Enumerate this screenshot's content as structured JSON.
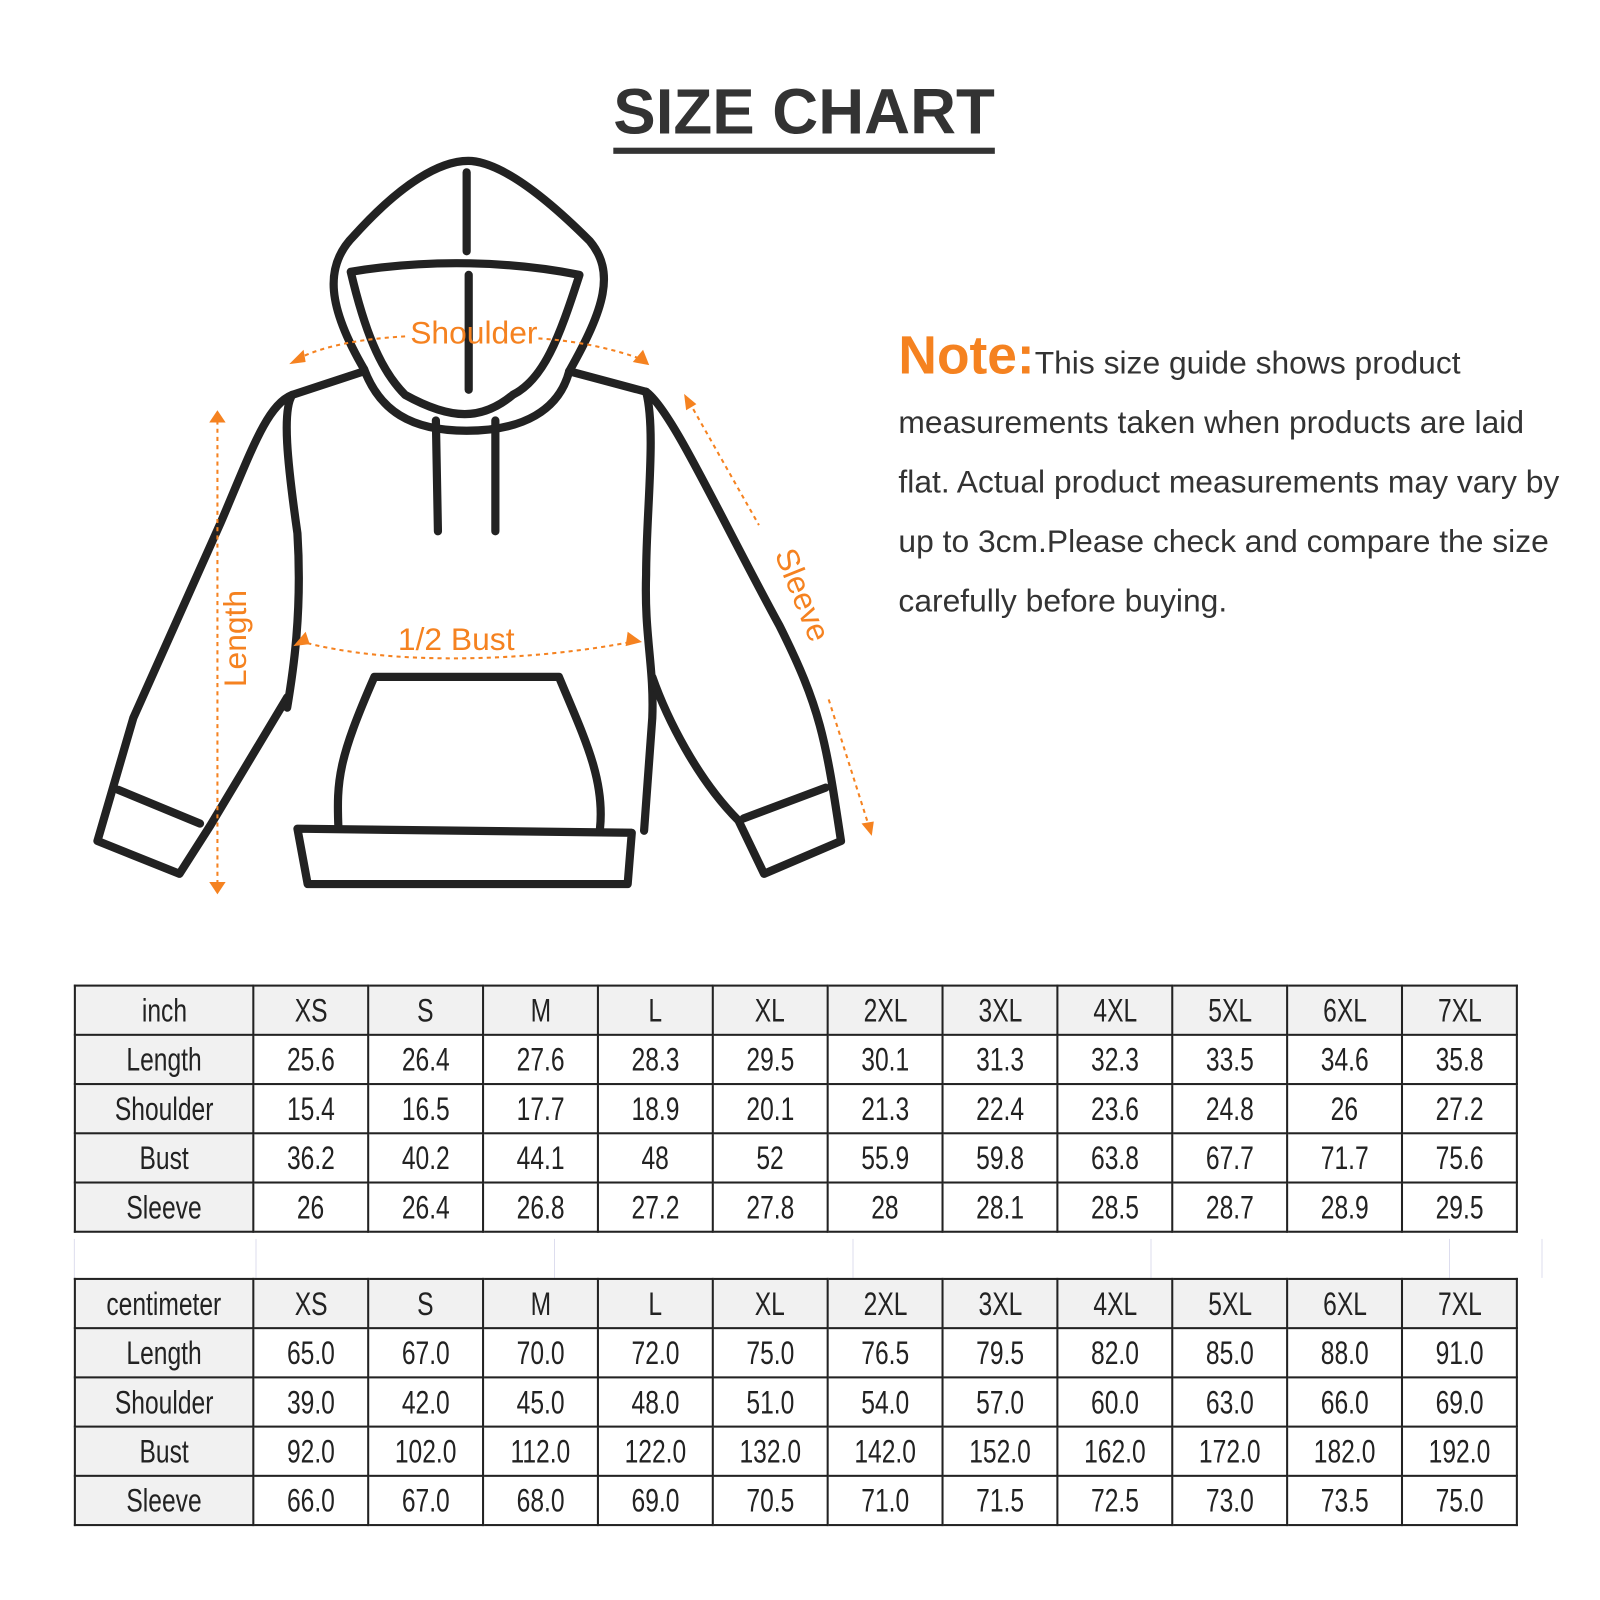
{
  "title": "SIZE CHART",
  "diagram": {
    "shoulder": "Shoulder",
    "bust": "1/2 Bust",
    "length": "Length",
    "sleeve": "Sleeve",
    "accent": "#f58220"
  },
  "note": {
    "label": "Note:",
    "text": "This size guide shows product measurements taken when products are laid flat. Actual product measurements may vary by up to 3cm.Please check and compare the size carefully before buying."
  },
  "sizes": [
    "XS",
    "S",
    "M",
    "L",
    "XL",
    "2XL",
    "3XL",
    "4XL",
    "5XL",
    "6XL",
    "7XL"
  ],
  "inch": {
    "unit": "inch",
    "rows": [
      {
        "label": "Length",
        "values": [
          "25.6",
          "26.4",
          "27.6",
          "28.3",
          "29.5",
          "30.1",
          "31.3",
          "32.3",
          "33.5",
          "34.6",
          "35.8"
        ]
      },
      {
        "label": "Shoulder",
        "values": [
          "15.4",
          "16.5",
          "17.7",
          "18.9",
          "20.1",
          "21.3",
          "22.4",
          "23.6",
          "24.8",
          "26",
          "27.2"
        ]
      },
      {
        "label": "Bust",
        "values": [
          "36.2",
          "40.2",
          "44.1",
          "48",
          "52",
          "55.9",
          "59.8",
          "63.8",
          "67.7",
          "71.7",
          "75.6"
        ]
      },
      {
        "label": "Sleeve",
        "values": [
          "26",
          "26.4",
          "26.8",
          "27.2",
          "27.8",
          "28",
          "28.1",
          "28.5",
          "28.7",
          "28.9",
          "29.5"
        ]
      }
    ]
  },
  "cm": {
    "unit": "centimeter",
    "rows": [
      {
        "label": "Length",
        "values": [
          "65.0",
          "67.0",
          "70.0",
          "72.0",
          "75.0",
          "76.5",
          "79.5",
          "82.0",
          "85.0",
          "88.0",
          "91.0"
        ]
      },
      {
        "label": "Shoulder",
        "values": [
          "39.0",
          "42.0",
          "45.0",
          "48.0",
          "51.0",
          "54.0",
          "57.0",
          "60.0",
          "63.0",
          "66.0",
          "69.0"
        ]
      },
      {
        "label": "Bust",
        "values": [
          "92.0",
          "102.0",
          "112.0",
          "122.0",
          "132.0",
          "142.0",
          "152.0",
          "162.0",
          "172.0",
          "182.0",
          "192.0"
        ]
      },
      {
        "label": "Sleeve",
        "values": [
          "66.0",
          "67.0",
          "68.0",
          "69.0",
          "70.5",
          "71.0",
          "71.5",
          "72.5",
          "73.0",
          "73.5",
          "75.0"
        ]
      }
    ]
  }
}
